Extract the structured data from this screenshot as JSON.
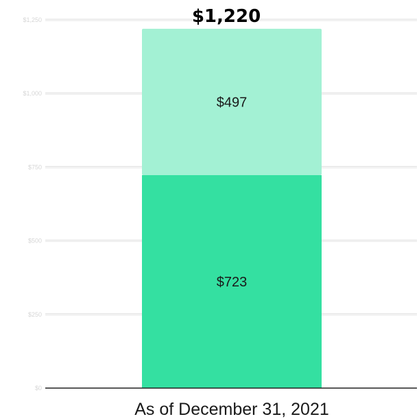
{
  "chart_data": {
    "type": "bar",
    "stacked": true,
    "categories": [
      "As of December 31, 2021"
    ],
    "series": [
      {
        "values": [
          723
        ],
        "color": "#34e0a1",
        "value_label": "$723"
      },
      {
        "values": [
          497
        ],
        "color": "#a3f1d4",
        "value_label": "$497"
      }
    ],
    "total_label": "$1,220",
    "ylim": [
      0,
      1250
    ],
    "yticks": [
      0,
      250,
      500,
      750,
      1000,
      1250
    ],
    "ytick_labels": [
      "$0",
      "$250",
      "$500",
      "$750",
      "$1,000",
      "$1,250"
    ],
    "grid": true,
    "title": "",
    "xlabel": "",
    "ylabel": ""
  }
}
